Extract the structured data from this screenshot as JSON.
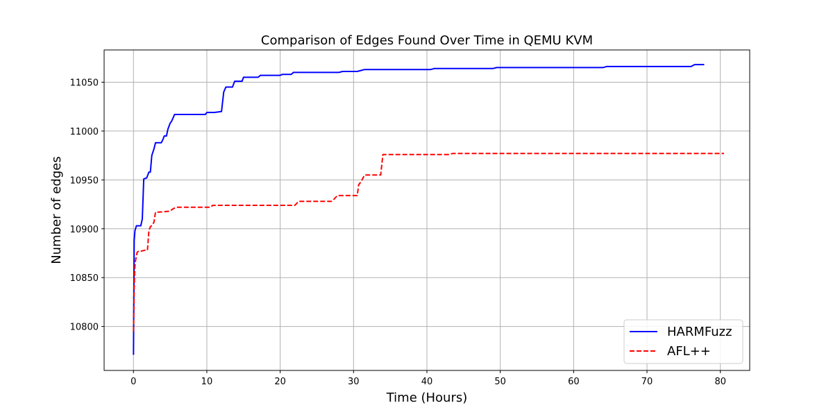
{
  "chart_data": {
    "type": "line",
    "title": "Comparison of Edges Found Over Time in QEMU KVM",
    "xlabel": "Time (Hours)",
    "ylabel": "Number of edges",
    "xlim": [
      -4,
      84
    ],
    "ylim": [
      10755,
      11083
    ],
    "xticks": [
      0,
      10,
      20,
      30,
      40,
      50,
      60,
      70,
      80
    ],
    "yticks": [
      10800,
      10850,
      10900,
      10950,
      11000,
      11050
    ],
    "grid": true,
    "legend": "bottom-right",
    "series": [
      {
        "name": "HARMFuzz",
        "color": "#0000ff",
        "style": "solid",
        "x": [
          0.0,
          0.1,
          0.2,
          0.4,
          0.6,
          1.0,
          1.2,
          1.4,
          1.8,
          2.1,
          2.3,
          2.5,
          2.8,
          3.0,
          3.8,
          4.0,
          4.2,
          4.5,
          4.7,
          5.0,
          5.2,
          5.6,
          9.8,
          10.0,
          11.0,
          12.0,
          12.3,
          12.6,
          13.5,
          13.8,
          14.8,
          15.0,
          17.0,
          17.3,
          20.0,
          20.3,
          21.5,
          21.8,
          28.0,
          28.5,
          30.5,
          31.0,
          31.5,
          40.5,
          41.0,
          49.0,
          49.5,
          64.0,
          64.5,
          76.0,
          76.5,
          77.8
        ],
        "y": [
          10771,
          10888,
          10898,
          10903,
          10903,
          10903,
          10910,
          10951,
          10952,
          10958,
          10958,
          10975,
          10982,
          10988,
          10988,
          10991,
          10995,
          10995,
          11002,
          11008,
          11010,
          11017,
          11017,
          11019,
          11019,
          11020,
          11040,
          11045,
          11045,
          11051,
          11051,
          11055,
          11055,
          11057,
          11057,
          11058,
          11058,
          11060,
          11060,
          11061,
          11061,
          11062,
          11063,
          11063,
          11064,
          11064,
          11065,
          11065,
          11066,
          11066,
          11068,
          11068
        ]
      },
      {
        "name": "AFL++",
        "color": "#ff0000",
        "style": "dashed",
        "x": [
          0.0,
          0.1,
          0.2,
          0.3,
          0.5,
          0.7,
          1.0,
          1.5,
          1.9,
          2.1,
          2.3,
          2.6,
          2.8,
          3.0,
          3.5,
          5.0,
          5.3,
          5.8,
          10.5,
          10.8,
          22.0,
          22.5,
          27.0,
          27.3,
          27.8,
          30.5,
          30.7,
          31.0,
          31.5,
          33.7,
          34.0,
          43.0,
          43.5,
          80.5
        ],
        "y": [
          10795,
          10840,
          10862,
          10868,
          10876,
          10877,
          10877,
          10878,
          10878,
          10898,
          10902,
          10904,
          10907,
          10917,
          10917,
          10918,
          10920,
          10922,
          10922,
          10924,
          10924,
          10928,
          10928,
          10930,
          10934,
          10934,
          10945,
          10948,
          10955,
          10955,
          10976,
          10976,
          10977,
          10977
        ]
      }
    ]
  }
}
